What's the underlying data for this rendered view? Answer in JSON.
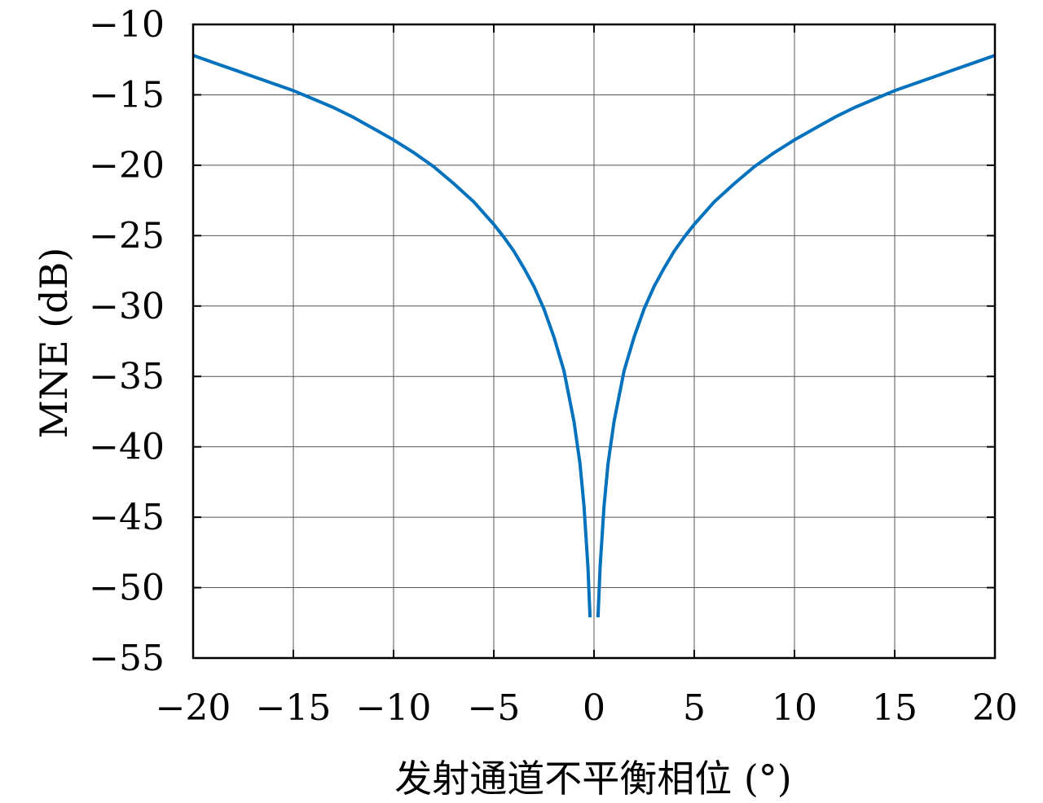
{
  "chart_data": {
    "type": "line",
    "title": "",
    "xlabel": "发射通道不平衡相位 (°)",
    "ylabel": "MNE (dB)",
    "xlim": [
      -20,
      20
    ],
    "ylim": [
      -55,
      -10
    ],
    "x_ticks": [
      "−20",
      "−15",
      "−10",
      "−5",
      "0",
      "5",
      "10",
      "15",
      "20"
    ],
    "y_ticks": [
      "−10",
      "−15",
      "−20",
      "−25",
      "−30",
      "−35",
      "−40",
      "−45",
      "−50",
      "−55"
    ],
    "grid": true,
    "colors": {
      "series": "#0072BD"
    },
    "series": [
      {
        "x": [
          -20,
          -19,
          -18,
          -17,
          -16,
          -15,
          -14,
          -13,
          -12,
          -11,
          -10,
          -9,
          -8,
          -7,
          -6,
          -5,
          -4.5,
          -4,
          -3.5,
          -3,
          -2.5,
          -2,
          -1.5,
          -1,
          -0.7,
          -0.5,
          -0.3,
          -0.2
        ],
        "values": [
          -12.2,
          -12.7,
          -13.2,
          -13.7,
          -14.2,
          -14.7,
          -15.3,
          -15.9,
          -16.6,
          -17.4,
          -18.2,
          -19.1,
          -20.1,
          -21.3,
          -22.6,
          -24.2,
          -25.1,
          -26.1,
          -27.3,
          -28.6,
          -30.2,
          -32.2,
          -34.6,
          -38.2,
          -41.2,
          -44.2,
          -48.6,
          -52.1
        ]
      },
      {
        "x": [
          0.2,
          0.3,
          0.5,
          0.7,
          1,
          1.5,
          2,
          2.5,
          3,
          3.5,
          4,
          4.5,
          5,
          6,
          7,
          8,
          9,
          10,
          11,
          12,
          13,
          14,
          15,
          16,
          17,
          18,
          19,
          20
        ],
        "values": [
          -52.1,
          -48.6,
          -44.2,
          -41.2,
          -38.2,
          -34.6,
          -32.2,
          -30.2,
          -28.6,
          -27.3,
          -26.1,
          -25.1,
          -24.2,
          -22.6,
          -21.3,
          -20.1,
          -19.1,
          -18.2,
          -17.4,
          -16.6,
          -15.9,
          -15.3,
          -14.7,
          -14.2,
          -13.7,
          -13.2,
          -12.7,
          -12.2
        ]
      }
    ]
  }
}
